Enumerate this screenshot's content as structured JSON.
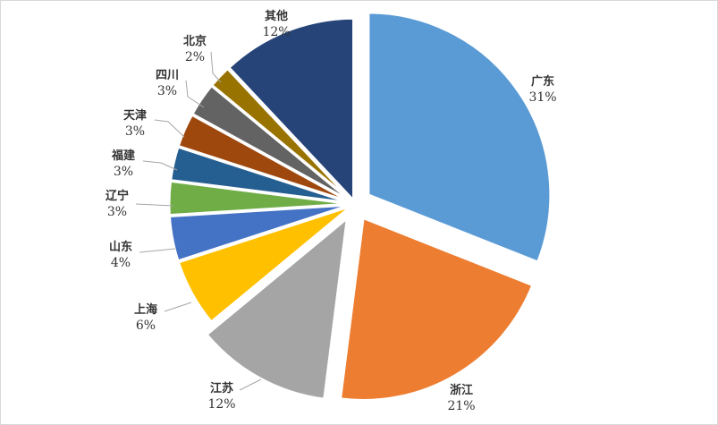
{
  "chart_data": {
    "type": "pie",
    "start_angle_deg": 0,
    "direction": "clockwise",
    "exploded": true,
    "slices": [
      {
        "label": "广东",
        "value": 31,
        "value_label": "31%",
        "color": "#5b9bd5"
      },
      {
        "label": "浙江",
        "value": 21,
        "value_label": "21%",
        "color": "#ed7d31"
      },
      {
        "label": "江苏",
        "value": 12,
        "value_label": "12%",
        "color": "#a5a5a5"
      },
      {
        "label": "上海",
        "value": 6,
        "value_label": "6%",
        "color": "#ffc000"
      },
      {
        "label": "山东",
        "value": 4,
        "value_label": "4%",
        "color": "#4472c4"
      },
      {
        "label": "辽宁",
        "value": 3,
        "value_label": "3%",
        "color": "#70ad47"
      },
      {
        "label": "福建",
        "value": 3,
        "value_label": "3%",
        "color": "#255e91"
      },
      {
        "label": "天津",
        "value": 3,
        "value_label": "3%",
        "color": "#9e480e"
      },
      {
        "label": "四川",
        "value": 3,
        "value_label": "3%",
        "color": "#636363"
      },
      {
        "label": "北京",
        "value": 2,
        "value_label": "2%",
        "color": "#997300"
      },
      {
        "label": "其他",
        "value": 12,
        "value_label": "12%",
        "color": "#264478"
      }
    ]
  }
}
